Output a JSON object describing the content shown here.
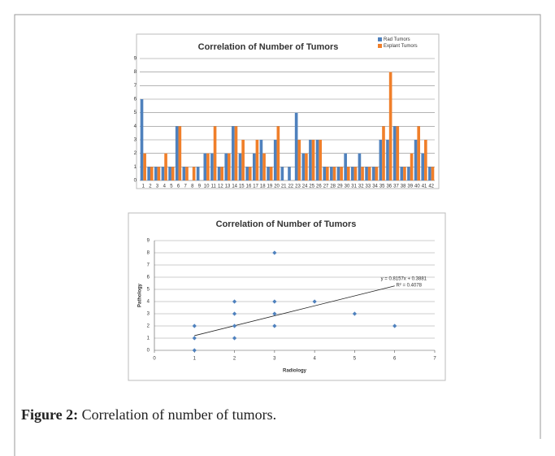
{
  "chart_data": [
    {
      "type": "bar",
      "title": "Correlation of Number of Tumors",
      "categories": [
        "1",
        "2",
        "3",
        "4",
        "5",
        "6",
        "7",
        "8",
        "9",
        "10",
        "11",
        "12",
        "13",
        "14",
        "15",
        "16",
        "17",
        "18",
        "19",
        "20",
        "21",
        "22",
        "23",
        "24",
        "25",
        "26",
        "27",
        "28",
        "29",
        "30",
        "31",
        "32",
        "33",
        "34",
        "35",
        "36",
        "37",
        "38",
        "39",
        "40",
        "41",
        "42"
      ],
      "series": [
        {
          "name": "Rad Tumors",
          "color": "#4f81bd",
          "values": [
            6,
            1,
            1,
            1,
            1,
            4,
            1,
            0,
            1,
            2,
            2,
            1,
            2,
            4,
            2,
            1,
            2,
            3,
            1,
            3,
            1,
            1,
            5,
            2,
            3,
            3,
            1,
            1,
            1,
            2,
            1,
            2,
            1,
            1,
            3,
            3,
            4,
            1,
            1,
            3,
            2,
            1
          ]
        },
        {
          "name": "Explant Tumors",
          "color": "#f07f2a",
          "values": [
            2,
            1,
            1,
            2,
            1,
            4,
            1,
            1,
            0,
            2,
            4,
            1,
            2,
            4,
            3,
            1,
            3,
            2,
            1,
            4,
            0,
            0,
            3,
            2,
            3,
            3,
            1,
            1,
            1,
            1,
            1,
            1,
            1,
            1,
            4,
            8,
            4,
            1,
            2,
            4,
            3,
            1
          ]
        }
      ],
      "ylim": [
        0,
        9
      ],
      "yticks": [
        0,
        1,
        2,
        3,
        4,
        5,
        6,
        7,
        8,
        9
      ],
      "grid": true,
      "legend": "top-right"
    },
    {
      "type": "scatter",
      "title": "Correlation of Number of Tumors",
      "x_label": "Radiology",
      "y_label": "Pathology",
      "x": [
        1,
        1,
        1,
        2,
        2,
        2,
        2,
        3,
        3,
        3,
        3,
        4,
        5,
        6
      ],
      "values": [
        0,
        1,
        2,
        1,
        2,
        3,
        4,
        2,
        3,
        4,
        8,
        4,
        3,
        2
      ],
      "color": "#4f81bd",
      "xlim": [
        0,
        7
      ],
      "xticks": [
        0,
        1,
        2,
        3,
        4,
        5,
        6,
        7
      ],
      "ylim": [
        0,
        9
      ],
      "yticks": [
        0,
        1,
        2,
        3,
        4,
        5,
        6,
        7,
        8,
        9
      ],
      "grid": true,
      "trendline": {
        "slope": 0.8157,
        "intercept": 0.3881,
        "equation": "y = 0.8157x + 0.3881",
        "r2": "R² = 0.4078"
      }
    }
  ],
  "caption": {
    "label": "Figure 2:",
    "text": "Correlation of number of tumors."
  }
}
